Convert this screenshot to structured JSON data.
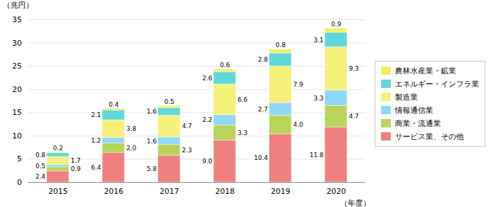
{
  "chart_data": {
    "type": "bar",
    "stacked": true,
    "categories": [
      "2015",
      "2016",
      "2017",
      "2018",
      "2019",
      "2020"
    ],
    "series": [
      {
        "name": "サービス業、その他",
        "color": "#f08080",
        "values": [
          2.4,
          6.4,
          5.8,
          9.0,
          10.4,
          11.8
        ],
        "value_labels": [
          "2.4",
          "6.4",
          "5.8",
          "9.0",
          "10.4",
          "11.8"
        ]
      },
      {
        "name": "商業・流通業",
        "color": "#b8d45a",
        "values": [
          0.9,
          2.0,
          2.3,
          3.3,
          4.0,
          4.7
        ],
        "value_labels": [
          "0.9",
          "2.0",
          "2.3",
          "3.3",
          "4.0",
          "4.7"
        ]
      },
      {
        "name": "情報通信業",
        "color": "#90d8f8",
        "values": [
          0.5,
          1.2,
          1.6,
          2.2,
          2.7,
          3.3
        ]
      },
      {
        "name": "製造業",
        "color": "#f5f07a",
        "values": [
          1.7,
          3.8,
          4.7,
          6.6,
          7.9,
          9.3
        ]
      },
      {
        "name": "エネルギー・インフラ業",
        "color": "#60d8d8",
        "values": [
          0.8,
          2.1,
          1.6,
          2.6,
          2.8,
          3.1
        ]
      },
      {
        "name": "農林水産業・鉱業",
        "color": "#f0f060",
        "values": [
          0.2,
          0.4,
          0.5,
          0.6,
          0.8,
          0.9
        ]
      }
    ],
    "ylabel": "（兆円）",
    "xlabel": "（年度）",
    "ylim": [
      0,
      35
    ],
    "yticks": [
      0,
      5,
      10,
      15,
      20,
      25,
      30,
      35
    ],
    "grid": true,
    "legend": "right",
    "data_labels": true
  }
}
